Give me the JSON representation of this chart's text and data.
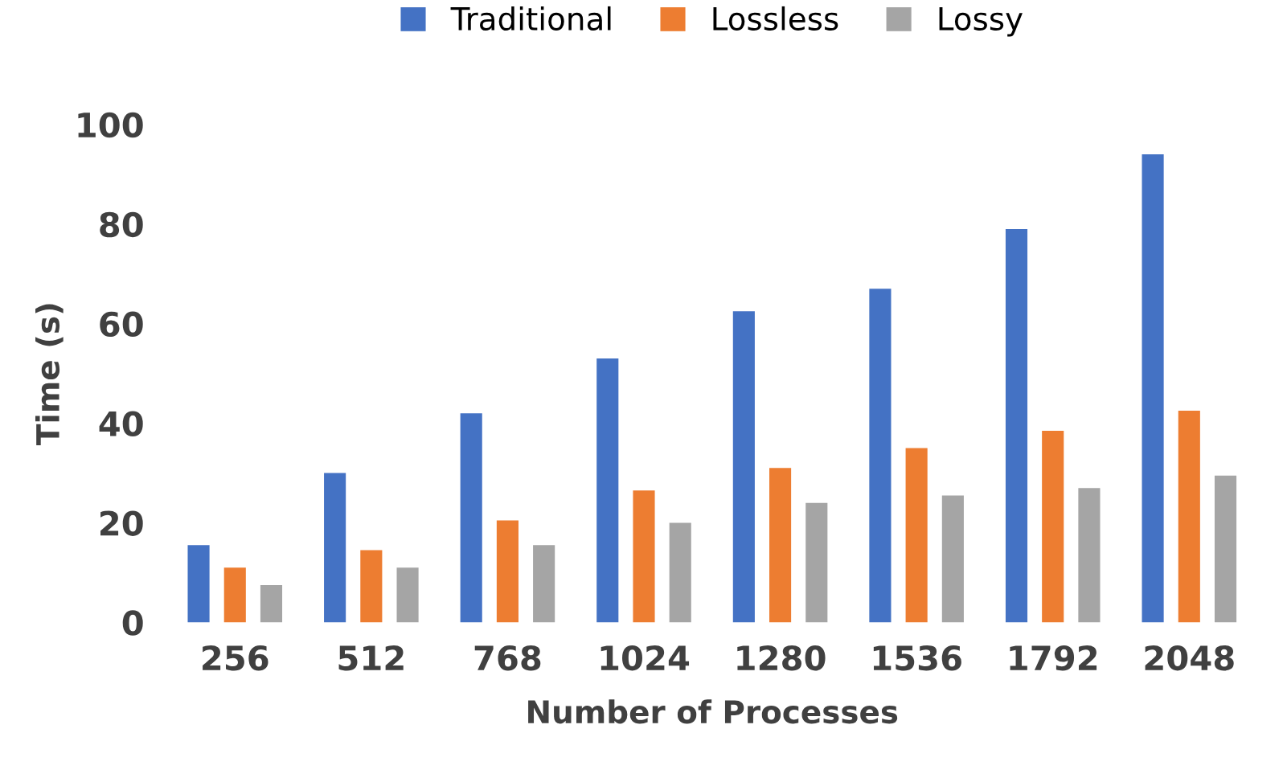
{
  "chart_data": {
    "type": "bar",
    "xlabel": "Number of Processes",
    "ylabel": "Time (s)",
    "categories": [
      "256",
      "512",
      "768",
      "1024",
      "1280",
      "1536",
      "1792",
      "2048"
    ],
    "series": [
      {
        "name": "Traditional",
        "color": "#4472c4",
        "values": [
          15.5,
          30,
          42,
          53,
          62.5,
          67,
          79,
          94
        ]
      },
      {
        "name": "Lossless",
        "color": "#ed7d31",
        "values": [
          11,
          14.5,
          20.5,
          26.5,
          31,
          35,
          38.5,
          42.5
        ]
      },
      {
        "name": "Lossy",
        "color": "#a5a5a5",
        "values": [
          7.5,
          11,
          15.5,
          20,
          24,
          25.5,
          27,
          29.5
        ]
      }
    ],
    "ylim": [
      0,
      100
    ],
    "yticks": [
      0,
      20,
      40,
      60,
      80,
      100
    ],
    "grid": false,
    "legend": "top"
  }
}
